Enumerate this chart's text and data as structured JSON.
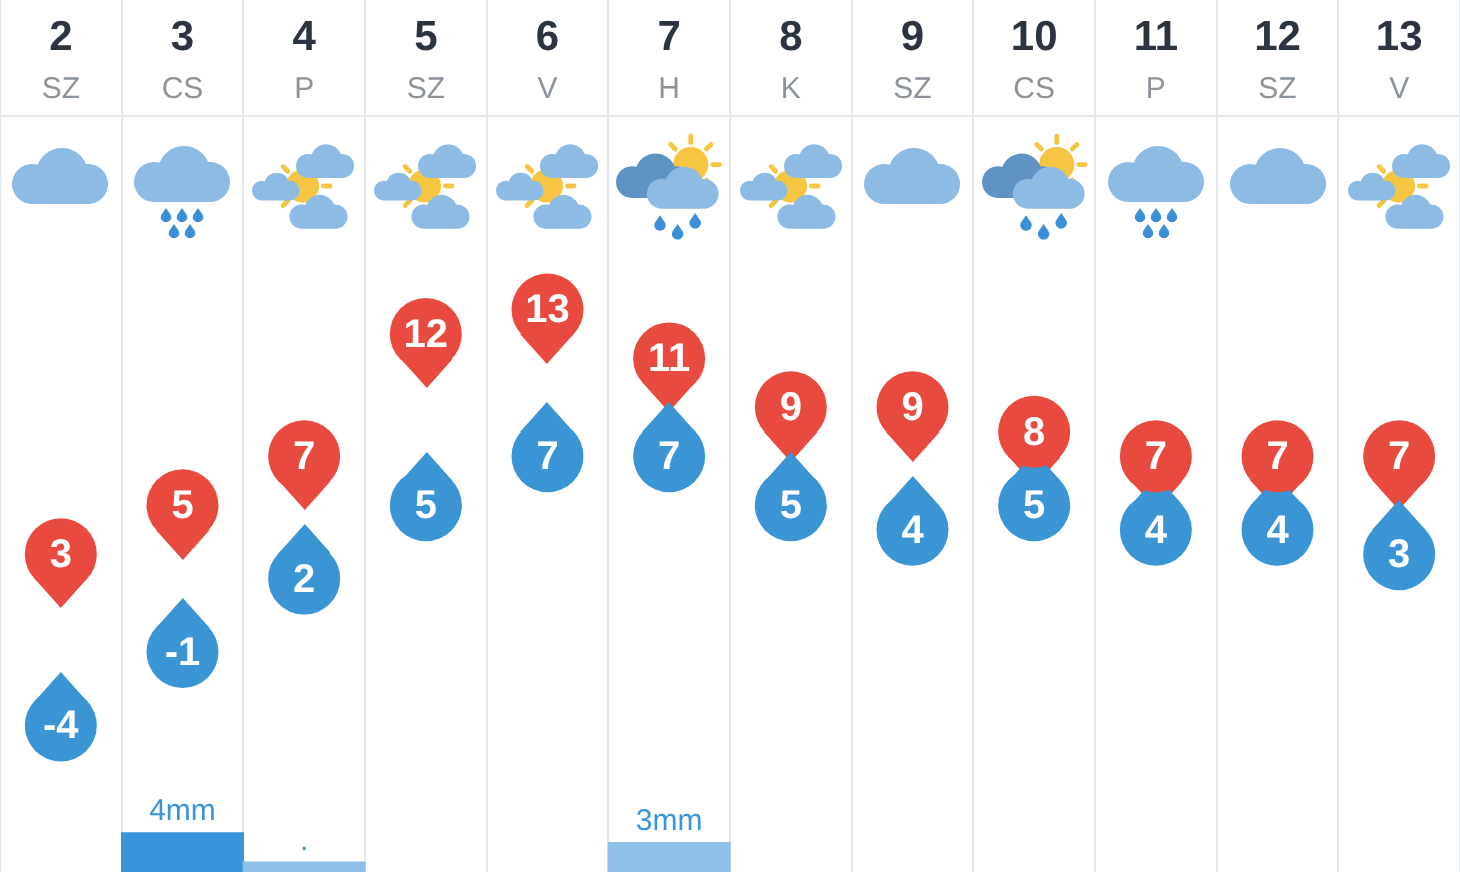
{
  "chart_data": [
    {
      "type": "scatter",
      "categories": [
        "2\nSZ",
        "3\nCS",
        "4\nP",
        "5\nSZ",
        "6\nV",
        "7\nH",
        "8\nK",
        "9\nSZ",
        "10\nCS",
        "11\nP",
        "12\nSZ",
        "13\nV"
      ],
      "series": [
        {
          "color": "#e84a3f",
          "values": [
            3,
            5,
            7,
            12,
            13,
            11,
            9,
            9,
            8,
            7,
            7,
            7
          ]
        },
        {
          "color": "#3b94d4",
          "values": [
            -4,
            -1,
            2,
            5,
            7,
            7,
            5,
            4,
            5,
            4,
            4,
            3
          ]
        }
      ],
      "grid": "x",
      "marker": "circle",
      "data_labels": true,
      "tick_labels": "x"
    },
    {
      "type": "bar",
      "categories": [
        null,
        null,
        null,
        null,
        null,
        null,
        null,
        null,
        null,
        null,
        null,
        null
      ],
      "color": "#3a94db",
      "colors": [
        null,
        "#3a94db",
        "#8fc0ea",
        null,
        null,
        "#8fc0ea",
        null,
        null,
        null,
        null,
        null,
        null
      ],
      "values": [
        null,
        4,
        1,
        null,
        null,
        3,
        null,
        null,
        null,
        null,
        null,
        null
      ],
      "value_labels": [
        null,
        "4mm",
        ".",
        null,
        null,
        "3mm",
        null,
        null,
        null,
        null,
        null,
        null
      ],
      "grid": "x",
      "tick_labels": false
    }
  ]
}
